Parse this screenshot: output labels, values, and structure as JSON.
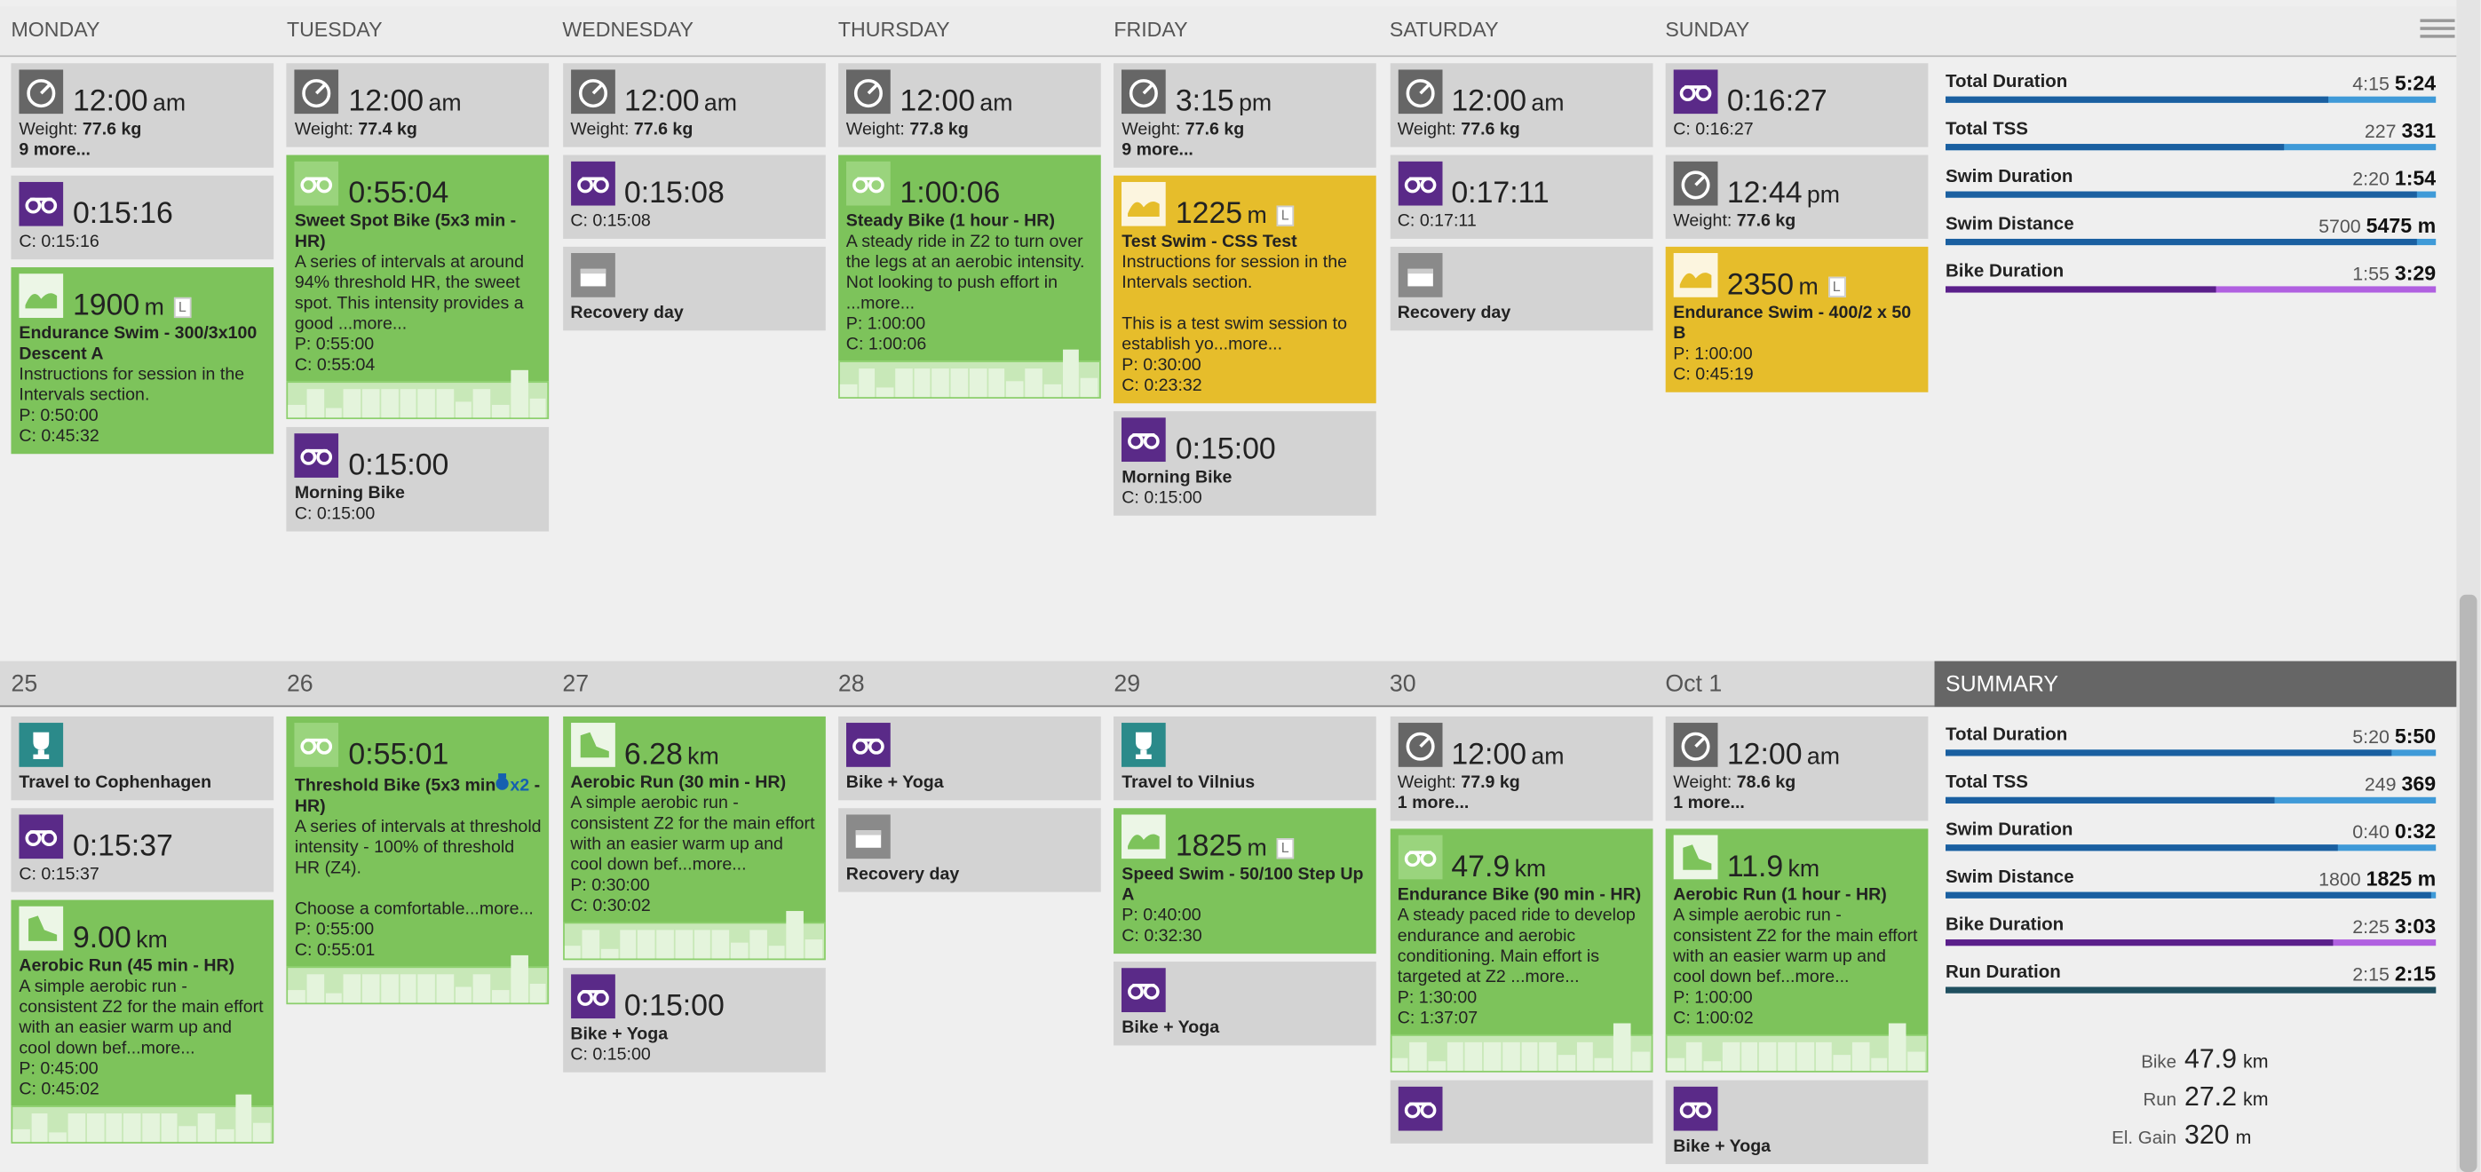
{
  "day_headers": [
    "MONDAY",
    "TUESDAY",
    "WEDNESDAY",
    "THURSDAY",
    "FRIDAY",
    "SATURDAY",
    "SUNDAY"
  ],
  "weeks": [
    {
      "days": [
        {
          "cards": [
            {
              "kind": "metric",
              "color": "grey",
              "big": "12:00",
              "unit": "am",
              "weight": {
                "label": "Weight:",
                "value": "77.6 kg"
              },
              "more": "9 more..."
            },
            {
              "kind": "bike",
              "color": "grey",
              "big": "0:15:16",
              "lines": [
                "C: 0:15:16"
              ]
            },
            {
              "kind": "swim",
              "color": "green",
              "big": "1900",
              "unit": "m",
              "badge": "L",
              "title": "Endurance Swim - 300/3x100 Descent A",
              "desc": "Instructions for session in the Intervals section.",
              "lines": [
                "P: 0:50:00",
                "C: 0:45:32"
              ]
            }
          ]
        },
        {
          "cards": [
            {
              "kind": "metric",
              "color": "grey",
              "big": "12:00",
              "unit": "am",
              "weight": {
                "label": "Weight:",
                "value": "77.4 kg"
              }
            },
            {
              "kind": "bike",
              "color": "green",
              "big": "0:55:04",
              "title": "Sweet Spot Bike (5x3 min - HR)",
              "desc": "A series of intervals at around 94% threshold HR, the sweet spot. This intensity provides a good ...more...",
              "lines": [
                "P: 0:55:00",
                "C: 0:55:04"
              ],
              "chart": true
            },
            {
              "kind": "bike",
              "color": "grey",
              "big": "0:15:00",
              "title": "Morning Bike",
              "lines": [
                "C: 0:15:00"
              ]
            }
          ]
        },
        {
          "cards": [
            {
              "kind": "metric",
              "color": "grey",
              "big": "12:00",
              "unit": "am",
              "weight": {
                "label": "Weight:",
                "value": "77.6 kg"
              }
            },
            {
              "kind": "bike",
              "color": "grey",
              "big": "0:15:08",
              "lines": [
                "C: 0:15:08"
              ]
            },
            {
              "kind": "rest",
              "color": "grey",
              "title": "Recovery day"
            }
          ]
        },
        {
          "cards": [
            {
              "kind": "metric",
              "color": "grey",
              "big": "12:00",
              "unit": "am",
              "weight": {
                "label": "Weight:",
                "value": "77.8 kg"
              }
            },
            {
              "kind": "bike",
              "color": "green",
              "big": "1:00:06",
              "title": "Steady Bike (1 hour - HR)",
              "desc": "A steady ride in Z2 to turn over the legs at an aerobic intensity. Not looking to push effort in ...more...",
              "lines": [
                "P: 1:00:00",
                "C: 1:00:06"
              ],
              "chart": true
            }
          ]
        },
        {
          "cards": [
            {
              "kind": "metric",
              "color": "grey",
              "big": "3:15",
              "unit": "pm",
              "weight": {
                "label": "Weight:",
                "value": "77.6 kg"
              },
              "more": "9 more..."
            },
            {
              "kind": "swim",
              "color": "yellow",
              "big": "1225",
              "unit": "m",
              "badge": "L",
              "title": "Test Swim - CSS Test",
              "desc": "Instructions for session in the Intervals section.\n\nThis is a test swim session to establish yo...more...",
              "lines": [
                "P: 0:30:00",
                "C: 0:23:32"
              ]
            },
            {
              "kind": "bike",
              "color": "grey",
              "big": "0:15:00",
              "title": "Morning Bike",
              "lines": [
                "C: 0:15:00"
              ]
            }
          ]
        },
        {
          "cards": [
            {
              "kind": "metric",
              "color": "grey",
              "big": "12:00",
              "unit": "am",
              "weight": {
                "label": "Weight:",
                "value": "77.6 kg"
              }
            },
            {
              "kind": "bike",
              "color": "grey",
              "big": "0:17:11",
              "lines": [
                "C: 0:17:11"
              ]
            },
            {
              "kind": "rest",
              "color": "grey",
              "title": "Recovery day"
            }
          ]
        },
        {
          "cards": [
            {
              "kind": "bike",
              "color": "grey",
              "big": "0:16:27",
              "lines": [
                "C: 0:16:27"
              ]
            },
            {
              "kind": "metric",
              "color": "grey",
              "big": "12:44",
              "unit": "pm",
              "weight": {
                "label": "Weight:",
                "value": "77.6 kg"
              }
            },
            {
              "kind": "swim",
              "color": "yellow",
              "big": "2350",
              "unit": "m",
              "badge": "L",
              "title": "Endurance Swim - 400/2 x 50 B",
              "lines": [
                "P: 1:00:00",
                "C: 0:45:19"
              ]
            }
          ]
        }
      ],
      "summary": {
        "rows": [
          {
            "label": "Total Duration",
            "plan": "4:15",
            "actual": "5:24",
            "palette": "blue",
            "bar": [
              0.78,
              1
            ]
          },
          {
            "label": "Total TSS",
            "plan": "227",
            "actual": "331",
            "palette": "blue",
            "bar": [
              0.69,
              1
            ]
          },
          {
            "label": "Swim Duration",
            "plan": "2:20",
            "actual": "1:54",
            "palette": "blue",
            "bar": [
              0.96,
              1
            ]
          },
          {
            "label": "Swim Distance",
            "plan": "5700",
            "actual": "5475 m",
            "palette": "blue",
            "bar": [
              0.96,
              1
            ]
          },
          {
            "label": "Bike Duration",
            "plan": "1:55",
            "actual": "3:29",
            "palette": "purple",
            "bar": [
              0.55,
              1
            ]
          }
        ]
      }
    },
    {
      "days": [
        {
          "label": "25",
          "cards": [
            {
              "kind": "trophy",
              "color": "grey",
              "title": "Travel to Cophenhagen"
            },
            {
              "kind": "bike",
              "color": "grey",
              "big": "0:15:37",
              "lines": [
                "C: 0:15:37"
              ]
            },
            {
              "kind": "run",
              "color": "green",
              "big": "9.00",
              "unit": "km",
              "title": "Aerobic Run (45 min - HR)",
              "desc": "A simple aerobic run - consistent Z2 for the main effort with an easier warm up and cool down bef...more...",
              "lines": [
                "P: 0:45:00",
                "C: 0:45:02"
              ],
              "chart": true
            }
          ]
        },
        {
          "label": "26",
          "cards": [
            {
              "kind": "bike",
              "color": "green",
              "big": "0:55:01",
              "title": "Threshold Bike (5x3 min",
              "medal": "x2",
              "title_rest": "- HR)",
              "desc": "A series of intervals at threshold intensity - 100% of threshold HR (Z4).\n\nChoose a comfortable...more...",
              "lines": [
                "P: 0:55:00",
                "C: 0:55:01"
              ],
              "chart": true
            }
          ]
        },
        {
          "label": "27",
          "cards": [
            {
              "kind": "run",
              "color": "green",
              "big": "6.28",
              "unit": "km",
              "title": "Aerobic Run (30 min - HR)",
              "desc": "A simple aerobic run - consistent Z2 for the main effort with an easier warm up and cool down bef...more...",
              "lines": [
                "P: 0:30:00",
                "C: 0:30:02"
              ],
              "chart": true
            },
            {
              "kind": "bike",
              "color": "grey",
              "big": "0:15:00",
              "title": "Bike + Yoga",
              "lines": [
                "C: 0:15:00"
              ]
            }
          ]
        },
        {
          "label": "28",
          "cards": [
            {
              "kind": "bike",
              "color": "grey",
              "title": "Bike + Yoga"
            },
            {
              "kind": "rest",
              "color": "grey",
              "title": "Recovery day"
            }
          ]
        },
        {
          "label": "29",
          "cards": [
            {
              "kind": "trophy",
              "color": "grey",
              "title": "Travel to Vilnius"
            },
            {
              "kind": "swim",
              "color": "green",
              "big": "1825",
              "unit": "m",
              "badge": "L",
              "title": "Speed Swim - 50/100 Step Up A",
              "lines": [
                "P: 0:40:00",
                "C: 0:32:30"
              ]
            },
            {
              "kind": "bike",
              "color": "grey",
              "title": "Bike + Yoga"
            }
          ]
        },
        {
          "label": "30",
          "cards": [
            {
              "kind": "metric",
              "color": "grey",
              "big": "12:00",
              "unit": "am",
              "weight": {
                "label": "Weight:",
                "value": "77.9 kg"
              },
              "more": "1 more..."
            },
            {
              "kind": "bike",
              "color": "green",
              "big": "47.9",
              "unit": "km",
              "title": "Endurance Bike (90 min - HR)",
              "desc": "A steady paced ride to develop endurance and aerobic conditioning. Main effort is targeted at Z2 ...more...",
              "lines": [
                "P: 1:30:00",
                "C: 1:37:07"
              ],
              "chart": true
            },
            {
              "kind": "bike",
              "color": "grey"
            }
          ]
        },
        {
          "label": "Oct 1",
          "cards": [
            {
              "kind": "metric",
              "color": "grey",
              "big": "12:00",
              "unit": "am",
              "weight": {
                "label": "Weight:",
                "value": "78.6 kg"
              },
              "more": "1 more..."
            },
            {
              "kind": "run",
              "color": "green",
              "big": "11.9",
              "unit": "km",
              "title": "Aerobic Run (1 hour - HR)",
              "desc": "A simple aerobic run - consistent Z2 for the main effort with an easier warm up and cool down bef...more...",
              "lines": [
                "P: 1:00:00",
                "C: 1:00:02"
              ],
              "chart": true
            },
            {
              "kind": "bike",
              "color": "grey",
              "title": "Bike + Yoga"
            }
          ]
        }
      ],
      "summary": {
        "header": "SUMMARY",
        "rows": [
          {
            "label": "Total Duration",
            "plan": "5:20",
            "actual": "5:50",
            "palette": "blue",
            "bar": [
              0.91,
              1
            ]
          },
          {
            "label": "Total TSS",
            "plan": "249",
            "actual": "369",
            "palette": "blue",
            "bar": [
              0.67,
              1
            ]
          },
          {
            "label": "Swim Duration",
            "plan": "0:40",
            "actual": "0:32",
            "palette": "blue",
            "bar": [
              0.8,
              1
            ]
          },
          {
            "label": "Swim Distance",
            "plan": "1800",
            "actual": "1825 m",
            "palette": "blue",
            "bar": [
              0.99,
              1
            ]
          },
          {
            "label": "Bike Duration",
            "plan": "2:25",
            "actual": "3:03",
            "palette": "purple",
            "bar": [
              0.79,
              1
            ]
          },
          {
            "label": "Run Duration",
            "plan": "2:15",
            "actual": "2:15",
            "palette": "teal",
            "bar": [
              1,
              1
            ]
          }
        ],
        "totals": [
          {
            "label": "Bike",
            "value": "47.9",
            "unit": "km"
          },
          {
            "label": "Run",
            "value": "27.2",
            "unit": "km"
          },
          {
            "label": "El. Gain",
            "value": "320",
            "unit": "m"
          }
        ]
      }
    }
  ]
}
